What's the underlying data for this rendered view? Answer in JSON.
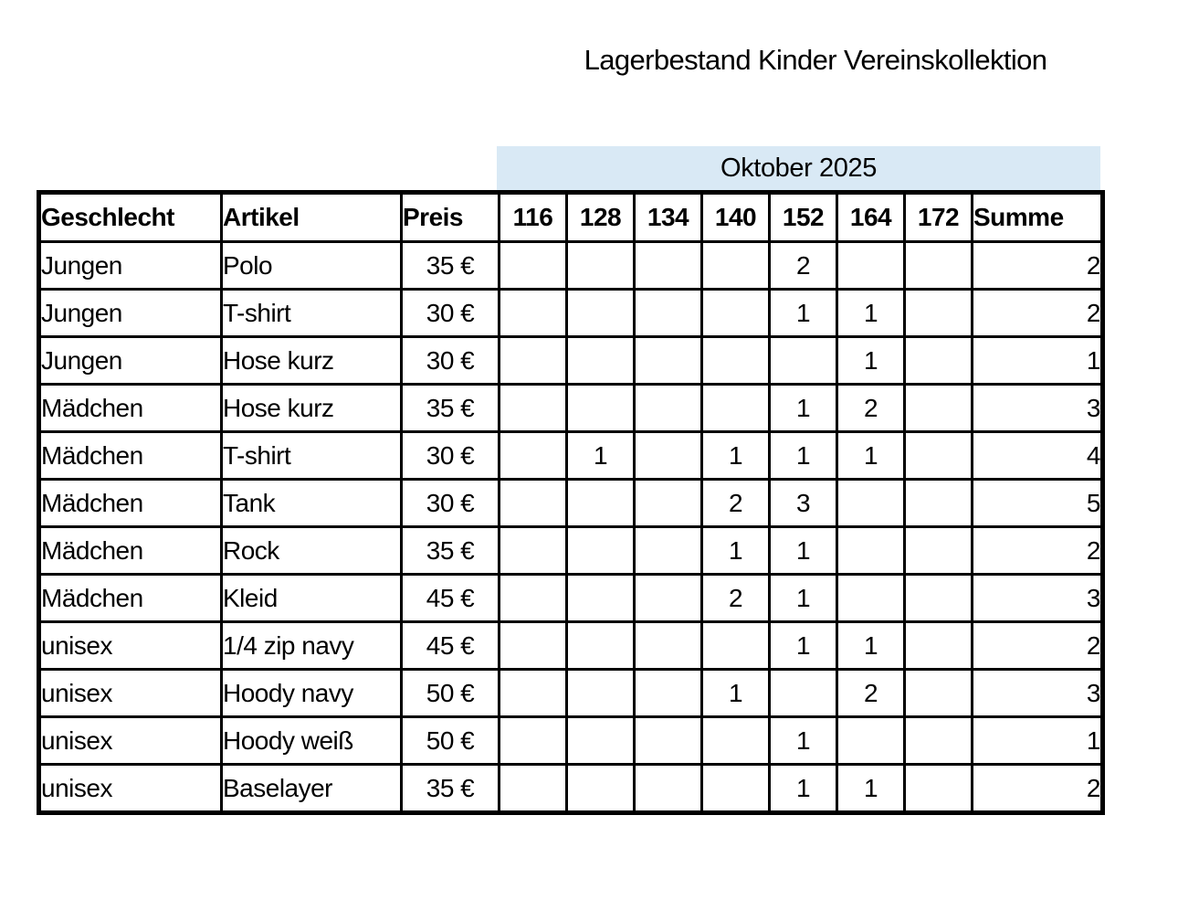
{
  "title": "Lagerbestand Kinder Vereinskollektion",
  "month_header": "Oktober 2025",
  "colors": {
    "month_band": "#d9e9f5",
    "grid": "#000000",
    "background": "#ffffff"
  },
  "table": {
    "columns": [
      "Geschlecht",
      "Artikel",
      "Preis",
      "116",
      "128",
      "134",
      "140",
      "152",
      "164",
      "172",
      "Summe"
    ],
    "rows": [
      [
        "Jungen",
        "Polo",
        "35 €",
        "",
        "",
        "",
        "",
        "2",
        "",
        "",
        "2"
      ],
      [
        "Jungen",
        "T-shirt",
        "30 €",
        "",
        "",
        "",
        "",
        "1",
        "1",
        "",
        "2"
      ],
      [
        "Jungen",
        "Hose kurz",
        "30 €",
        "",
        "",
        "",
        "",
        "",
        "1",
        "",
        "1"
      ],
      [
        "Mädchen",
        "Hose kurz",
        "35 €",
        "",
        "",
        "",
        "",
        "1",
        "2",
        "",
        "3"
      ],
      [
        "Mädchen",
        "T-shirt",
        "30 €",
        "",
        "1",
        "",
        "1",
        "1",
        "1",
        "",
        "4"
      ],
      [
        "Mädchen",
        "Tank",
        "30 €",
        "",
        "",
        "",
        "2",
        "3",
        "",
        "",
        "5"
      ],
      [
        "Mädchen",
        "Rock",
        "35 €",
        "",
        "",
        "",
        "1",
        "1",
        "",
        "",
        "2"
      ],
      [
        "Mädchen",
        "Kleid",
        "45 €",
        "",
        "",
        "",
        "2",
        "1",
        "",
        "",
        "3"
      ],
      [
        "unisex",
        "1/4 zip navy",
        "45 €",
        "",
        "",
        "",
        "",
        "1",
        "1",
        "",
        "2"
      ],
      [
        "unisex",
        "Hoody navy",
        "50 €",
        "",
        "",
        "",
        "1",
        "",
        "2",
        "",
        "3"
      ],
      [
        "unisex",
        "Hoody weiß",
        "50 €",
        "",
        "",
        "",
        "",
        "1",
        "",
        "",
        "1"
      ],
      [
        "unisex",
        "Baselayer",
        "35 €",
        "",
        "",
        "",
        "",
        "1",
        "1",
        "",
        "2"
      ]
    ]
  }
}
